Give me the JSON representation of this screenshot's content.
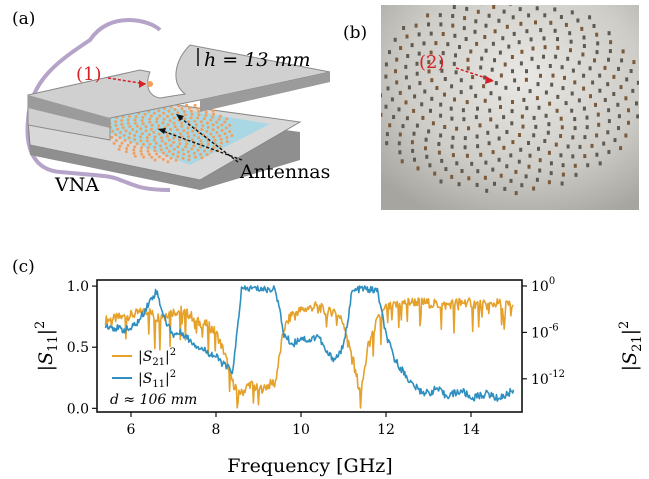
{
  "panels": {
    "a": {
      "label": "(a)",
      "marker": "(1)",
      "height_label": "h = 13 mm",
      "antennas_label": "Antennas",
      "vna_label": "VNA"
    },
    "b": {
      "label": "(b)",
      "marker": "(2)"
    },
    "c": {
      "label": "(c)"
    }
  },
  "colors": {
    "s21": "#e5a12a",
    "s11": "#2e8fc0",
    "marker_red": "#d61f26",
    "sheet": "#a9d8e4",
    "plate": "#d2d2d2",
    "plate_dark": "#9a9a9a",
    "antenna": "#f0a060"
  },
  "chart_data": {
    "type": "line",
    "x": [
      5.4,
      5.6,
      5.8,
      6.0,
      6.2,
      6.4,
      6.6,
      6.8,
      7.0,
      7.2,
      7.4,
      7.6,
      7.8,
      8.0,
      8.2,
      8.4,
      8.6,
      8.8,
      9.0,
      9.2,
      9.4,
      9.6,
      9.8,
      10.0,
      10.2,
      10.4,
      10.6,
      10.8,
      11.0,
      11.2,
      11.4,
      11.6,
      11.8,
      12.0,
      12.2,
      12.4,
      12.6,
      12.8,
      13.0,
      13.2,
      13.4,
      13.6,
      13.8,
      14.0,
      14.2,
      14.4,
      14.6,
      14.8,
      15.0
    ],
    "series": [
      {
        "name": "|S21|^2",
        "axis": "right",
        "values": [
          0.72,
          0.73,
          0.75,
          0.76,
          0.78,
          0.8,
          0.74,
          0.77,
          0.79,
          0.8,
          0.76,
          0.7,
          0.68,
          0.62,
          0.45,
          0.2,
          0.12,
          0.2,
          0.15,
          0.18,
          0.22,
          0.65,
          0.78,
          0.8,
          0.82,
          0.84,
          0.78,
          0.8,
          0.7,
          0.45,
          0.1,
          0.55,
          0.72,
          0.82,
          0.84,
          0.86,
          0.87,
          0.87,
          0.86,
          0.85,
          0.84,
          0.86,
          0.87,
          0.86,
          0.85,
          0.84,
          0.86,
          0.85,
          0.84
        ]
      },
      {
        "name": "|S11|^2",
        "axis": "left",
        "values": [
          0.68,
          0.66,
          0.64,
          0.65,
          0.72,
          0.85,
          0.96,
          0.72,
          0.6,
          0.62,
          0.55,
          0.5,
          0.46,
          0.42,
          0.35,
          0.3,
          0.97,
          0.98,
          0.98,
          0.97,
          0.98,
          0.6,
          0.52,
          0.58,
          0.55,
          0.6,
          0.45,
          0.4,
          0.5,
          0.95,
          0.98,
          0.97,
          0.96,
          0.6,
          0.4,
          0.3,
          0.2,
          0.14,
          0.12,
          0.16,
          0.1,
          0.12,
          0.14,
          0.08,
          0.1,
          0.12,
          0.08,
          0.1,
          0.15
        ]
      }
    ],
    "xlabel": "Frequency [GHz]",
    "ylabel_left": "|S11|^2",
    "ylabel_right": "|S21|^2",
    "xlim": [
      5.2,
      15.2
    ],
    "ylim_left": [
      -0.03,
      1.05
    ],
    "ylim_right_log10": [
      -15,
      0
    ],
    "xticks": [
      "6",
      "8",
      "10",
      "12",
      "14"
    ],
    "yticks_left": [
      "0.0",
      "0.5",
      "1.0"
    ],
    "yticks_right": [
      "10^-12",
      "10^-6",
      "10^0"
    ],
    "annotation": "d ≈ 106 mm",
    "legend_position": "lower-left",
    "grid": false
  }
}
